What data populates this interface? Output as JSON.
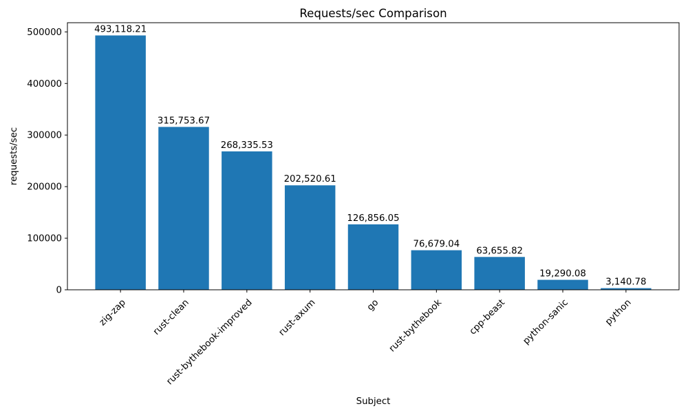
{
  "figure": {
    "background": "#ffffff",
    "plot_background": "#ffffff",
    "spine_color": "#000000"
  },
  "chart_data": {
    "type": "bar",
    "title": "Requests/sec Comparison",
    "xlabel": "Subject",
    "ylabel": "requests/sec",
    "categories": [
      "zig-zap",
      "rust-clean",
      "rust-bythebook-improved",
      "rust-axum",
      "go",
      "rust-bythebook",
      "cpp-beast",
      "python-sanic",
      "python"
    ],
    "values": [
      493118.21,
      315753.67,
      268335.53,
      202520.61,
      126856.05,
      76679.04,
      63655.82,
      19290.08,
      3140.78
    ],
    "value_labels": [
      "493,118.21",
      "315,753.67",
      "268,335.53",
      "202,520.61",
      "126,856.05",
      "76,679.04",
      "63,655.82",
      "19,290.08",
      "3,140.78"
    ],
    "y_ticks": [
      0,
      100000,
      200000,
      300000,
      400000,
      500000
    ],
    "y_tick_labels": [
      "0",
      "100000",
      "200000",
      "300000",
      "400000",
      "500000"
    ],
    "ylim": [
      0,
      517774.12
    ],
    "bar_color": "#1f77b4",
    "x_tick_rotation": 45,
    "grid": false,
    "legend": null
  }
}
